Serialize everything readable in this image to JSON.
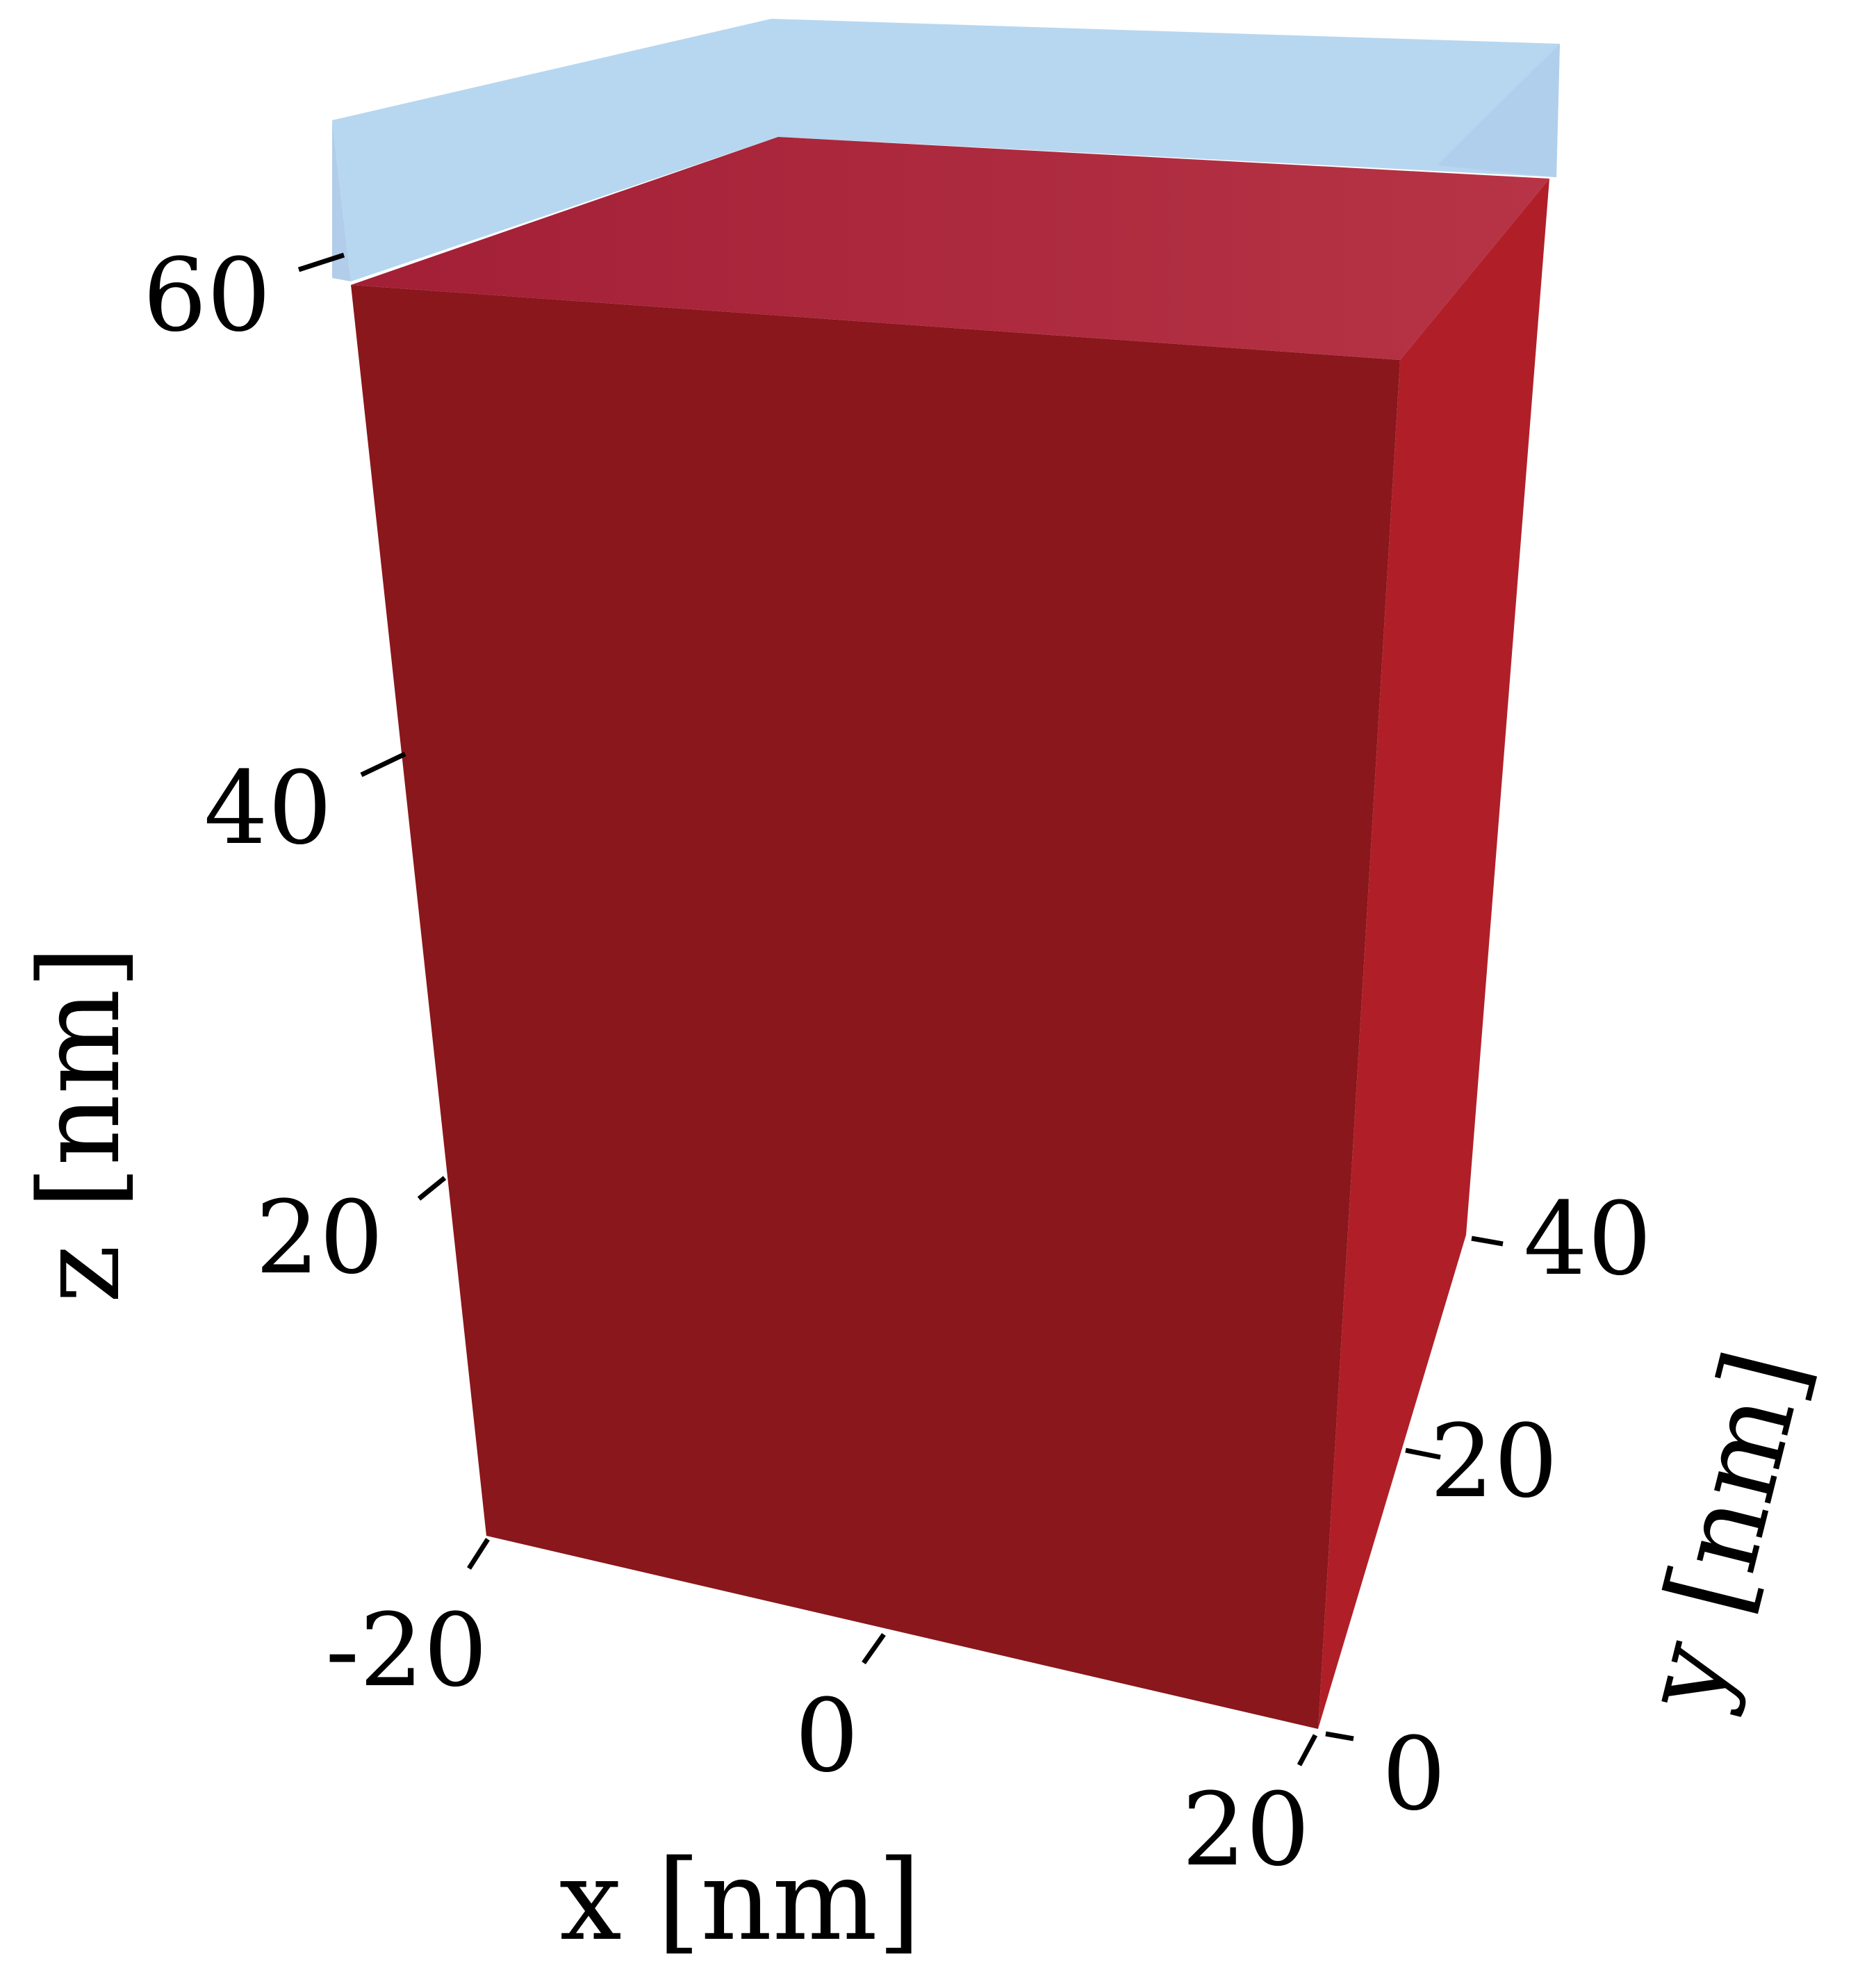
{
  "colors": {
    "background": "#ffffff",
    "block_front": "#89171b",
    "block_right": "#b01f28",
    "block_top_a": "#a21f36",
    "block_top_b": "#b73446",
    "layer_fill": "#b7d7f0",
    "layer_side": "#a9cbe9"
  },
  "axes": {
    "x": {
      "label": "x [nm]",
      "ticks": [
        "-20",
        "0",
        "20"
      ]
    },
    "y": {
      "label": "y [nm]",
      "ticks": [
        "0",
        "20",
        "40"
      ]
    },
    "z": {
      "label": "z [nm]",
      "ticks": [
        "20",
        "40",
        "60"
      ]
    }
  }
}
